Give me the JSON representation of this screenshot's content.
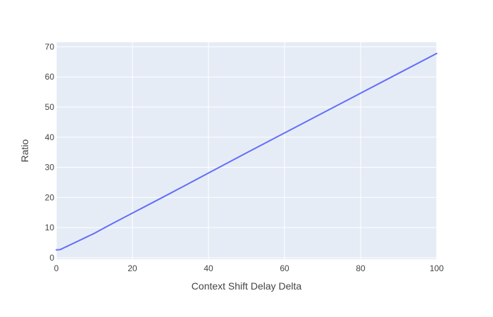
{
  "chart_data": {
    "type": "line",
    "title": "",
    "xlabel": "Context Shift Delay Delta",
    "ylabel": "Ratio",
    "xlim": [
      0,
      100
    ],
    "ylim": [
      -0.5,
      71.5
    ],
    "x_ticks": [
      0,
      20,
      40,
      60,
      80,
      100
    ],
    "y_ticks": [
      0,
      10,
      20,
      30,
      40,
      50,
      60,
      70
    ],
    "grid": true,
    "legend": "none",
    "colors": {
      "plot_background": "#e5ecf6",
      "grid": "#ffffff",
      "line": "#636efa",
      "text": "#444444"
    },
    "series": [
      {
        "x": [
          0,
          1,
          2,
          3,
          4,
          5,
          6,
          7,
          8,
          9,
          10,
          11,
          12,
          15,
          20,
          25,
          30,
          40,
          50,
          60,
          70,
          80,
          90,
          100
        ],
        "y": [
          2.6,
          2.7,
          3.3,
          3.9,
          4.5,
          5.1,
          5.7,
          6.3,
          6.9,
          7.5,
          8.1,
          8.8,
          9.5,
          11.5,
          14.8,
          18.1,
          21.4,
          28.1,
          34.8,
          41.4,
          48.0,
          54.6,
          61.2,
          67.8
        ]
      }
    ]
  }
}
